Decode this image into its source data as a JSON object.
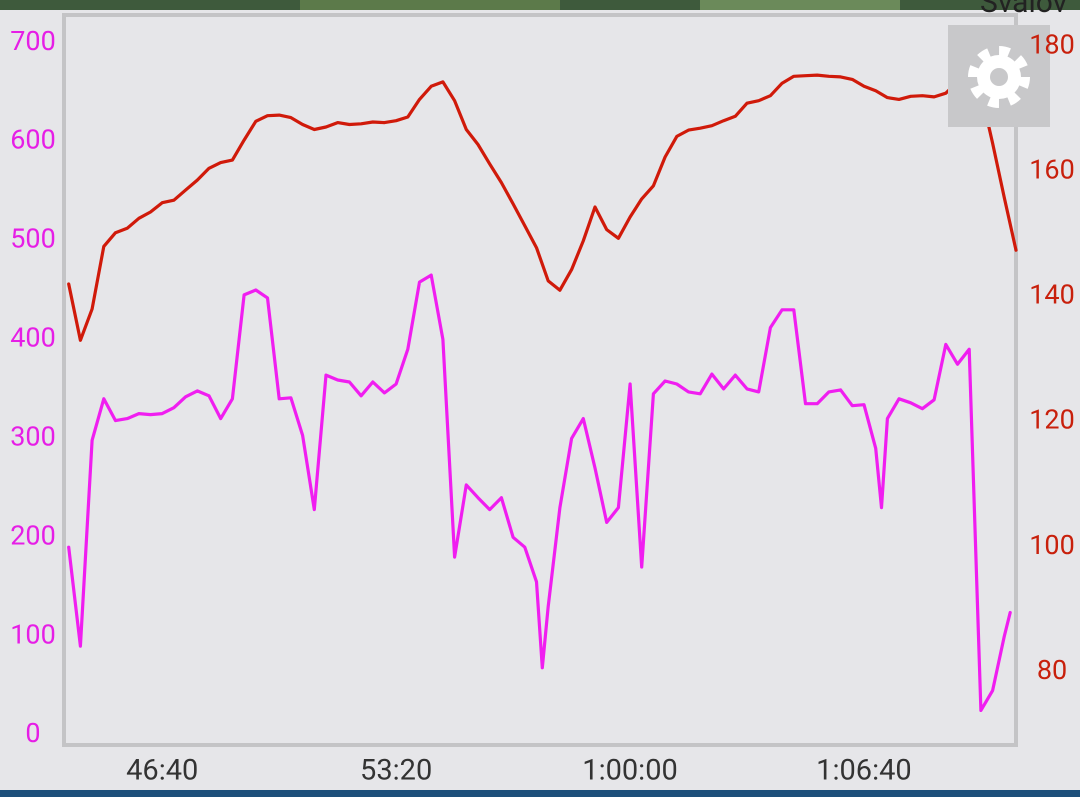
{
  "map_label": "Svalov",
  "chart_data": {
    "type": "line",
    "xlim": [
      2632,
      4260
    ],
    "xticks": [
      {
        "value": 2800,
        "label": "46:40"
      },
      {
        "value": 3200,
        "label": "53:20"
      },
      {
        "value": 3600,
        "label": "1:00:00"
      },
      {
        "value": 4000,
        "label": "1:06:40"
      }
    ],
    "ylim": [
      -10,
      728
    ],
    "yticks": [
      0,
      100,
      200,
      300,
      400,
      500,
      600,
      700
    ],
    "y2lim": [
      68.3,
      185
    ],
    "y2ticks": [
      80,
      100,
      120,
      140,
      160,
      180
    ],
    "y_color": "#e61ee6",
    "y2_color": "#c8200c",
    "series": [
      {
        "color": "#f01ef0",
        "x": [
          2640,
          2660,
          2680,
          2700,
          2720,
          2740,
          2760,
          2780,
          2800,
          2820,
          2840,
          2860,
          2880,
          2900,
          2920,
          2940,
          2960,
          2980,
          3000,
          3020,
          3040,
          3060,
          3080,
          3100,
          3120,
          3140,
          3160,
          3180,
          3200,
          3220,
          3240,
          3260,
          3280,
          3300,
          3320,
          3340,
          3360,
          3380,
          3400,
          3420,
          3440,
          3450,
          3460,
          3480,
          3500,
          3520,
          3540,
          3560,
          3580,
          3600,
          3620,
          3640,
          3660,
          3680,
          3700,
          3720,
          3740,
          3760,
          3780,
          3800,
          3820,
          3840,
          3860,
          3880,
          3900,
          3920,
          3940,
          3960,
          3980,
          4000,
          4020,
          4030,
          4040,
          4060,
          4080,
          4100,
          4120,
          4140,
          4160,
          4180,
          4200,
          4220,
          4240,
          4250
        ],
        "values": [
          190,
          90,
          298,
          340,
          318,
          320,
          325,
          324,
          325,
          331,
          342,
          348,
          343,
          320,
          340,
          445,
          450,
          442,
          340,
          341,
          303,
          228,
          364,
          359,
          357,
          343,
          357,
          346,
          355,
          390,
          458,
          465,
          400,
          180,
          253,
          240,
          228,
          240,
          200,
          190,
          155,
          68,
          130,
          230,
          300,
          320,
          270,
          215,
          230,
          355,
          170,
          345,
          358,
          355,
          347,
          345,
          365,
          350,
          364,
          350,
          347,
          412,
          430,
          430,
          335,
          335,
          347,
          349,
          333,
          334,
          290,
          230,
          320,
          340,
          336,
          330,
          339,
          395,
          375,
          390,
          25,
          45,
          100,
          124
        ]
      },
      {
        "color": "#d01a0a",
        "axis": "y2",
        "x": [
          2640,
          2660,
          2680,
          2700,
          2720,
          2740,
          2760,
          2780,
          2800,
          2820,
          2840,
          2860,
          2880,
          2900,
          2920,
          2940,
          2960,
          2980,
          3000,
          3020,
          3040,
          3060,
          3080,
          3100,
          3120,
          3140,
          3160,
          3180,
          3200,
          3220,
          3240,
          3260,
          3280,
          3300,
          3320,
          3340,
          3360,
          3380,
          3400,
          3420,
          3440,
          3460,
          3480,
          3500,
          3520,
          3540,
          3560,
          3580,
          3600,
          3620,
          3640,
          3660,
          3680,
          3700,
          3720,
          3740,
          3760,
          3780,
          3800,
          3820,
          3840,
          3860,
          3880,
          3900,
          3920,
          3940,
          3960,
          3980,
          4000,
          4020,
          4040,
          4060,
          4080,
          4100,
          4120,
          4140,
          4160,
          4180,
          4200,
          4220,
          4240,
          4260
        ],
        "values": [
          142,
          133,
          138,
          148,
          150.2,
          150.9,
          152.5,
          153.5,
          155,
          155.4,
          157,
          158.6,
          160.5,
          161.4,
          161.8,
          165,
          168,
          168.9,
          169,
          168.6,
          167.5,
          166.7,
          167.1,
          167.8,
          167.5,
          167.6,
          167.9,
          167.8,
          168.1,
          168.7,
          171.5,
          173.6,
          174.3,
          171.3,
          166.7,
          164.3,
          161.2,
          158.2,
          154.8,
          151.3,
          147.8,
          142.5,
          141,
          144.3,
          148.9,
          154.3,
          150.7,
          149.3,
          152.7,
          155.6,
          157.7,
          162.3,
          165.6,
          166.6,
          166.9,
          167.3,
          168.1,
          168.8,
          170.9,
          171.3,
          172.1,
          174.1,
          175.2,
          175.3,
          175.4,
          175.2,
          175.1,
          174.7,
          173.6,
          172.9,
          171.8,
          171.5,
          172,
          172.1,
          171.9,
          172.5,
          174.3,
          175.2,
          172.7,
          164.5,
          155.8,
          147.4
        ]
      }
    ]
  }
}
